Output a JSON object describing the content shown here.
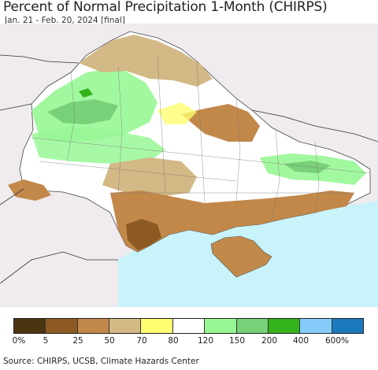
{
  "title": "Percent of Normal Precipitation 1-Month (CHIRPS)",
  "subtitle": "Jan. 21 - Feb. 20, 2024 [final]",
  "legend": {
    "colors": [
      "#4b3410",
      "#8c5a22",
      "#c1884a",
      "#d2b985",
      "#fefe72",
      "#ffffff",
      "#98f795",
      "#78d078",
      "#35b31b",
      "#84cbfb",
      "#1c79be"
    ],
    "labels": [
      "0%",
      "5",
      "25",
      "50",
      "70",
      "80",
      "120",
      "150",
      "200",
      "400",
      "600%"
    ]
  },
  "source": "Source: CHIRPS, UCSB, Climate Hazards Center"
}
